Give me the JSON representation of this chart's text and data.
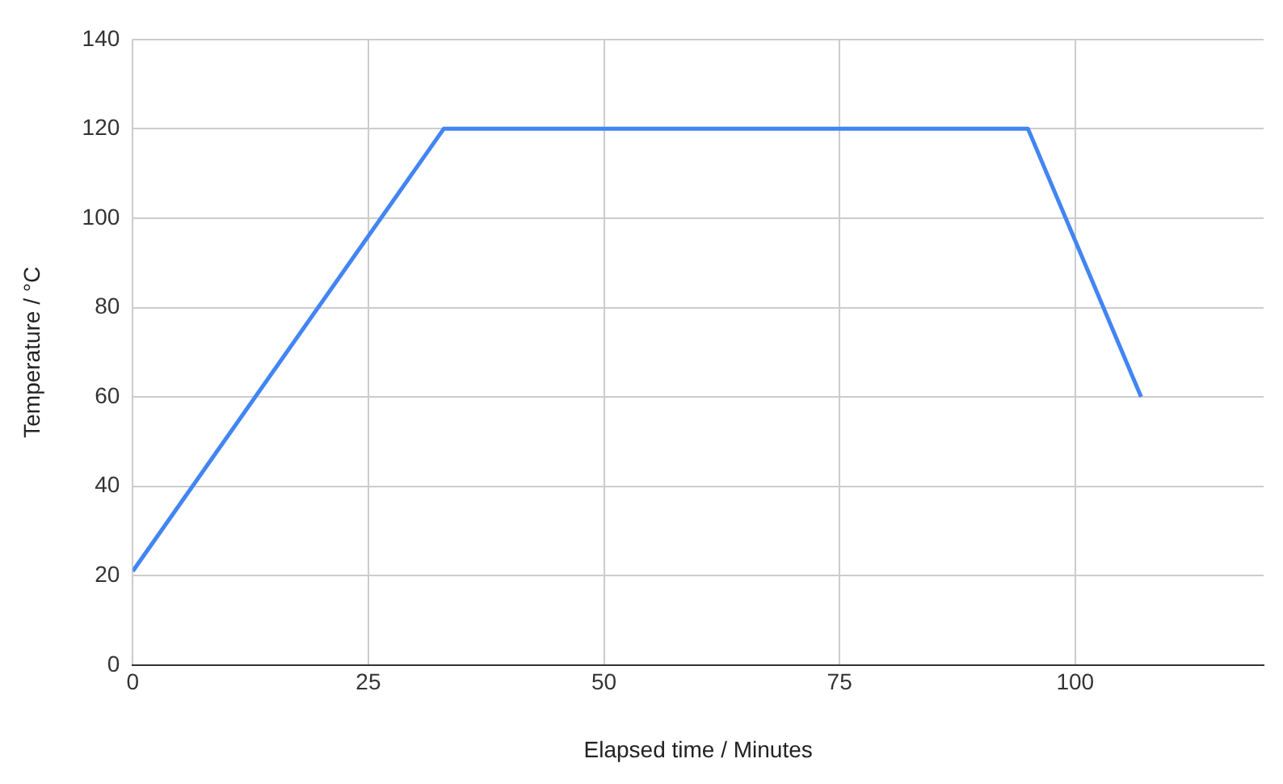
{
  "chart_data": {
    "type": "line",
    "xlabel": "Elapsed time / Minutes",
    "ylabel": "Temperature / °C",
    "x": [
      0,
      33,
      95,
      107
    ],
    "series": [
      {
        "color": "#4285f4",
        "values": [
          21,
          120,
          120,
          60
        ]
      }
    ],
    "xlim": [
      0,
      120
    ],
    "xticks": [
      0,
      25,
      50,
      75,
      100
    ],
    "ylim": [
      0,
      140
    ],
    "yticks": [
      0,
      20,
      40,
      60,
      80,
      100,
      120,
      140
    ],
    "grid": true,
    "legend": false,
    "marker": "none",
    "line_style": "solid"
  }
}
